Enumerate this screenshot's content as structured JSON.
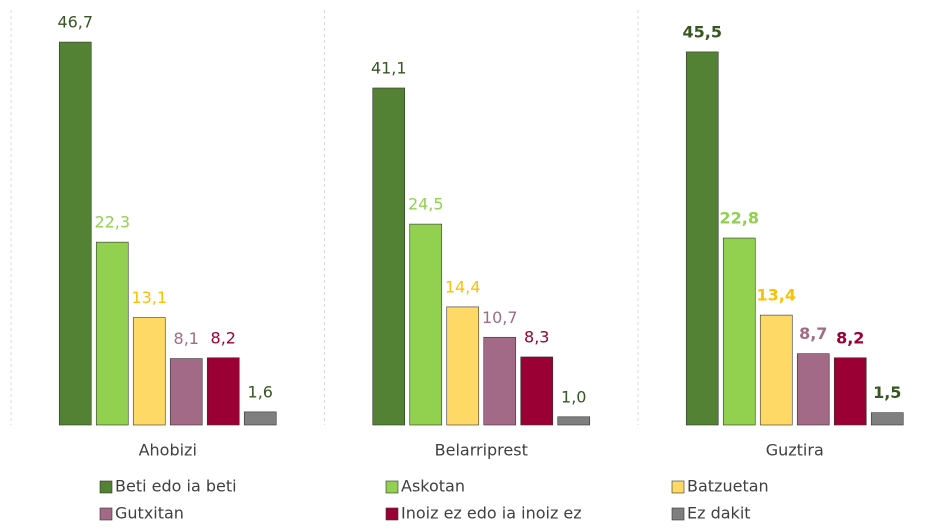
{
  "chart_data": {
    "type": "bar",
    "categories": [
      "Ahobizi",
      "Belarriprest",
      "Guztira"
    ],
    "series": [
      {
        "name": "Beti edo ia beti",
        "color": "#548235",
        "label_color": "#375623",
        "values": [
          46.7,
          41.1,
          45.5
        ],
        "value_labels": [
          "46,7",
          "41,1",
          "45,5"
        ]
      },
      {
        "name": "Askotan",
        "color": "#92d050",
        "label_color": "#92d050",
        "values": [
          22.3,
          24.5,
          22.8
        ],
        "value_labels": [
          "22,3",
          "24,5",
          "22,8"
        ]
      },
      {
        "name": "Batzuetan",
        "color": "#ffd966",
        "label_color": "#ffc000",
        "values": [
          13.1,
          14.4,
          13.4
        ],
        "value_labels": [
          "13,1",
          "14,4",
          "13,4"
        ]
      },
      {
        "name": "Gutxitan",
        "color": "#a26a86",
        "label_color": "#a26a86",
        "values": [
          8.1,
          10.7,
          8.7
        ],
        "value_labels": [
          "8,1",
          "10,7",
          "8,7"
        ]
      },
      {
        "name": "Inoiz ez edo ia inoiz ez",
        "color": "#9b0034",
        "label_color": "#9b0034",
        "values": [
          8.2,
          8.3,
          8.2
        ],
        "value_labels": [
          "8,2",
          "8,3",
          "8,2"
        ]
      },
      {
        "name": "Ez dakit",
        "color": "#7f7f7f",
        "label_color": "#375623",
        "values": [
          1.6,
          1.0,
          1.5
        ],
        "value_labels": [
          "1,6",
          "1,0",
          "1,5"
        ]
      }
    ],
    "bold_labels": [
      false,
      false,
      true
    ],
    "ylim": [
      0,
      50
    ],
    "legend": "bottom"
  }
}
